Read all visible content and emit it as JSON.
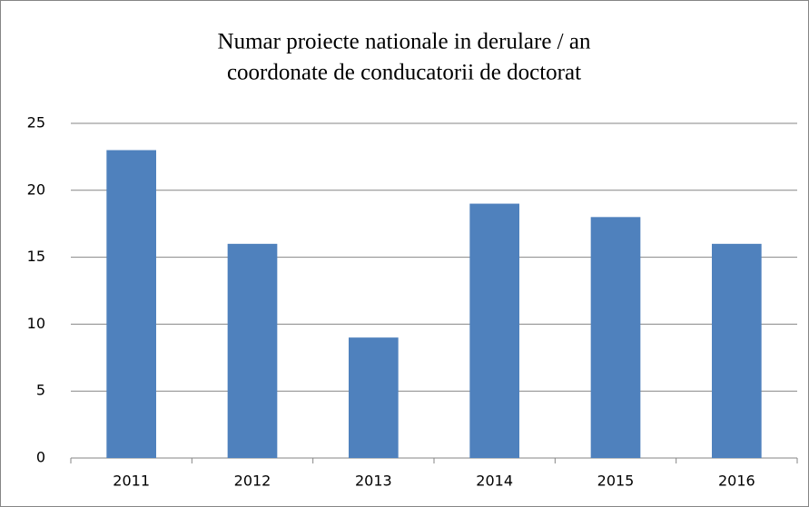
{
  "chart_data": {
    "type": "bar",
    "title": [
      "Numar proiecte nationale in derulare / an",
      "coordonate de conducatorii de doctorat"
    ],
    "categories": [
      "2011",
      "2012",
      "2013",
      "2014",
      "2015",
      "2016"
    ],
    "values": [
      23,
      16,
      9,
      19,
      18,
      16
    ],
    "color": "#4f81bd",
    "ylim": [
      0,
      25
    ],
    "yticks": [
      0,
      5,
      10,
      15,
      20,
      25
    ],
    "grid": true
  }
}
